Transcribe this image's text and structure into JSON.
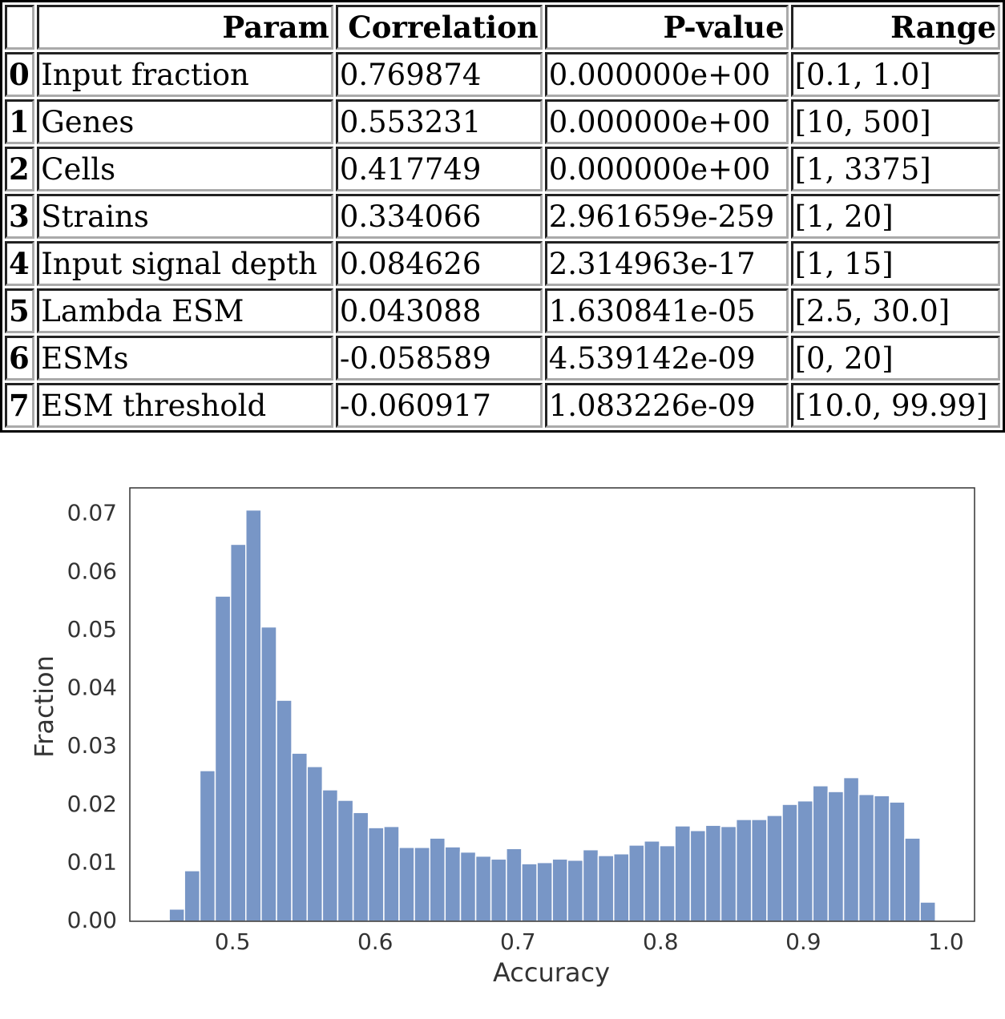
{
  "table": {
    "columns": [
      "Param",
      "Correlation",
      "P-value",
      "Range"
    ],
    "rows": [
      [
        "0",
        "Input fraction",
        "0.769874",
        "0.000000e+00",
        "[0.1, 1.0]"
      ],
      [
        "1",
        "Genes",
        "0.553231",
        "0.000000e+00",
        "[10, 500]"
      ],
      [
        "2",
        "Cells",
        "0.417749",
        "0.000000e+00",
        "[1, 3375]"
      ],
      [
        "3",
        "Strains",
        "0.334066",
        "2.961659e-259",
        "[1, 20]"
      ],
      [
        "4",
        "Input signal depth",
        "0.084626",
        "2.314963e-17",
        "[1, 15]"
      ],
      [
        "5",
        "Lambda ESM",
        "0.043088",
        "1.630841e-05",
        "[2.5, 30.0]"
      ],
      [
        "6",
        "ESMs",
        "-0.058589",
        "4.539142e-09",
        "[0, 20]"
      ],
      [
        "7",
        "ESM threshold",
        "-0.060917",
        "1.083226e-09",
        "[10.0, 99.99]"
      ]
    ]
  },
  "chart_data": {
    "type": "histogram",
    "x_label": "Accuracy",
    "y_label": "Fraction",
    "color": "#7896c6",
    "bins": [
      0.4556,
      0.4663,
      0.4771,
      0.4878,
      0.4986,
      0.5093,
      0.52,
      0.5308,
      0.5415,
      0.5523,
      0.563,
      0.5737,
      0.5845,
      0.5952,
      0.606,
      0.6167,
      0.6274,
      0.6382,
      0.6489,
      0.6597,
      0.6704,
      0.6811,
      0.6919,
      0.7026,
      0.7134,
      0.7241,
      0.7348,
      0.7456,
      0.7563,
      0.7671,
      0.7778,
      0.7885,
      0.7993,
      0.81,
      0.8208,
      0.8315,
      0.8422,
      0.853,
      0.8637,
      0.8745,
      0.8852,
      0.8959,
      0.9067,
      0.9174,
      0.9282,
      0.9389,
      0.9496,
      0.9604,
      0.9711,
      0.9819,
      0.9926
    ],
    "values": [
      0.0021,
      0.0087,
      0.0259,
      0.0559,
      0.0648,
      0.0707,
      0.0506,
      0.038,
      0.0289,
      0.0266,
      0.0226,
      0.0208,
      0.0187,
      0.0161,
      0.0163,
      0.0127,
      0.0127,
      0.0143,
      0.0128,
      0.0119,
      0.0112,
      0.0107,
      0.0125,
      0.0099,
      0.0101,
      0.0107,
      0.0105,
      0.0123,
      0.0113,
      0.0116,
      0.0131,
      0.0138,
      0.013,
      0.0164,
      0.0156,
      0.0165,
      0.0163,
      0.0175,
      0.0175,
      0.0182,
      0.0201,
      0.0207,
      0.0233,
      0.0223,
      0.0247,
      0.0218,
      0.0216,
      0.0205,
      0.0143,
      0.0033
    ],
    "xlim": [
      0.428,
      1.02
    ],
    "ylim": [
      0,
      0.0745
    ],
    "xticks": [
      0.5,
      0.6,
      0.7,
      0.8,
      0.9,
      {
        "value": 1,
        "label": "1.0"
      }
    ],
    "yticks": [
      {
        "value": 0,
        "label": "0.00"
      },
      0.01,
      0.02,
      0.03,
      0.04,
      0.05,
      0.06,
      0.07
    ]
  }
}
